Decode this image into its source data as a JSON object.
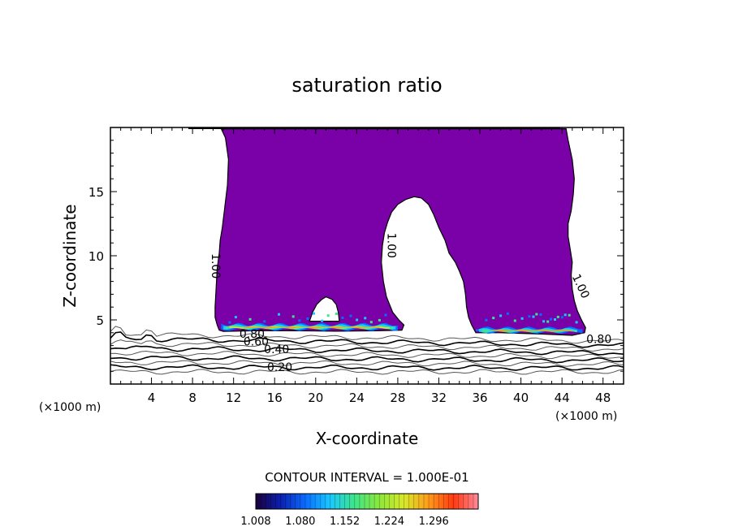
{
  "chart_data": {
    "type": "contour",
    "title": "saturation ratio",
    "xlabel": "X-coordinate",
    "ylabel": "Z-coordinate",
    "x_units": "(×1000 m)",
    "y_units": "(×1000 m)",
    "xlim": [
      0,
      50
    ],
    "ylim": [
      0,
      20
    ],
    "x_ticks": [
      4,
      8,
      12,
      16,
      20,
      24,
      28,
      32,
      36,
      40,
      44,
      48
    ],
    "y_ticks": [
      5,
      10,
      15
    ],
    "contour_interval_text": "CONTOUR INTERVAL = 1.000E-01",
    "contour_labels": [
      {
        "text": "1.00",
        "x": 9.9,
        "z": 9.2,
        "rotate": 90
      },
      {
        "text": "1.00",
        "x": 27.0,
        "z": 10.8,
        "rotate": 90
      },
      {
        "text": "1.00",
        "x": 45.5,
        "z": 7.5,
        "rotate": 65
      },
      {
        "text": "0.80",
        "x": 13.8,
        "z": 3.6,
        "rotate": 0
      },
      {
        "text": "0.60",
        "x": 14.2,
        "z": 3.0,
        "rotate": 0
      },
      {
        "text": "0.40",
        "x": 16.2,
        "z": 2.4,
        "rotate": 0
      },
      {
        "text": "0.20",
        "x": 16.5,
        "z": 1.0,
        "rotate": 0
      },
      {
        "text": "0.80",
        "x": 47.6,
        "z": 3.2,
        "rotate": 0
      }
    ],
    "supersaturated_region": {
      "fill_level": 1.008,
      "left_outline": [
        [
          10.8,
          19.9
        ],
        [
          11.2,
          19.2
        ],
        [
          11.5,
          17.5
        ],
        [
          11.4,
          15.5
        ],
        [
          11.1,
          13.5
        ],
        [
          10.9,
          12.2
        ],
        [
          10.7,
          11.2
        ],
        [
          10.6,
          10.2
        ],
        [
          10.4,
          9.0
        ],
        [
          10.3,
          7.5
        ],
        [
          10.2,
          6.0
        ],
        [
          10.2,
          5.2
        ],
        [
          10.4,
          4.6
        ],
        [
          10.6,
          4.2
        ],
        [
          11.0,
          4.1
        ],
        [
          14,
          4.15
        ],
        [
          18,
          4.15
        ],
        [
          22,
          4.12
        ],
        [
          26,
          4.15
        ],
        [
          28.4,
          4.2
        ],
        [
          28.6,
          4.6
        ],
        [
          28.1,
          5.0
        ],
        [
          27.5,
          5.6
        ],
        [
          26.9,
          6.8
        ],
        [
          26.6,
          8.0
        ],
        [
          26.4,
          9.5
        ],
        [
          26.5,
          10.8
        ],
        [
          26.7,
          11.8
        ],
        [
          27.0,
          12.6
        ],
        [
          27.4,
          13.4
        ],
        [
          28.0,
          14.0
        ],
        [
          28.8,
          14.4
        ],
        [
          29.6,
          14.6
        ],
        [
          30.3,
          14.5
        ],
        [
          31.0,
          14.0
        ],
        [
          31.5,
          13.2
        ],
        [
          32.0,
          12.2
        ],
        [
          32.6,
          11.2
        ],
        [
          33.0,
          10.2
        ],
        [
          33.6,
          9.5
        ],
        [
          34.0,
          8.8
        ],
        [
          34.4,
          8.0
        ],
        [
          34.6,
          7.0
        ],
        [
          34.7,
          6.0
        ],
        [
          34.9,
          5.2
        ],
        [
          35.2,
          4.6
        ],
        [
          35.6,
          4.0
        ],
        [
          38,
          4.0
        ],
        [
          42,
          3.9
        ],
        [
          45,
          3.8
        ],
        [
          46.2,
          4.0
        ],
        [
          46.3,
          4.4
        ],
        [
          45.9,
          5.0
        ],
        [
          45.5,
          5.7
        ],
        [
          45.2,
          6.5
        ],
        [
          45.0,
          7.4
        ],
        [
          44.9,
          8.5
        ],
        [
          45.0,
          9.5
        ],
        [
          44.8,
          10.5
        ],
        [
          44.6,
          11.5
        ],
        [
          44.6,
          12.5
        ],
        [
          44.9,
          13.5
        ],
        [
          45.1,
          14.8
        ],
        [
          45.2,
          16.0
        ],
        [
          45.0,
          17.5
        ],
        [
          44.6,
          19.0
        ],
        [
          44.4,
          19.9
        ]
      ],
      "holes": [
        [
          [
            19.4,
            4.9
          ],
          [
            19.7,
            5.6
          ],
          [
            20.1,
            6.2
          ],
          [
            20.6,
            6.6
          ],
          [
            21.0,
            6.8
          ],
          [
            21.6,
            6.6
          ],
          [
            22.0,
            6.2
          ],
          [
            22.2,
            5.6
          ],
          [
            22.3,
            4.9
          ]
        ]
      ]
    },
    "grey_contour_levels": [
      0.1,
      0.2,
      0.3,
      0.4,
      0.5,
      0.6,
      0.7,
      0.8,
      0.9
    ],
    "colorbar": {
      "min": 1.008,
      "max": 1.368,
      "tick_labels": [
        "1.008",
        "1.080",
        "1.152",
        "1.224",
        "1.296"
      ],
      "colormap": [
        "#1a003a",
        "#0b1faf",
        "#0a6cff",
        "#19c8ff",
        "#3fe58a",
        "#8ce83a",
        "#d9e82a",
        "#ff9a1a",
        "#ff3a10",
        "#ff8a9a"
      ]
    }
  }
}
